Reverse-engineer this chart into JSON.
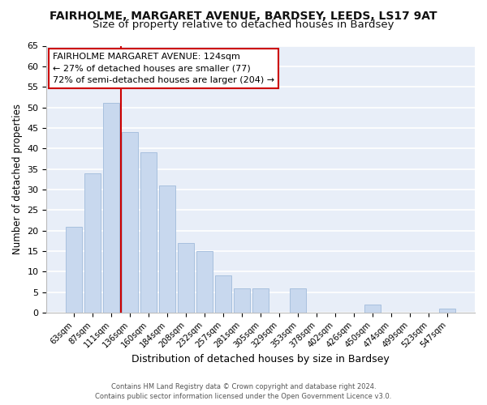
{
  "title": "FAIRHOLME, MARGARET AVENUE, BARDSEY, LEEDS, LS17 9AT",
  "subtitle": "Size of property relative to detached houses in Bardsey",
  "xlabel": "Distribution of detached houses by size in Bardsey",
  "ylabel": "Number of detached properties",
  "bar_labels": [
    "63sqm",
    "87sqm",
    "111sqm",
    "136sqm",
    "160sqm",
    "184sqm",
    "208sqm",
    "232sqm",
    "257sqm",
    "281sqm",
    "305sqm",
    "329sqm",
    "353sqm",
    "378sqm",
    "402sqm",
    "426sqm",
    "450sqm",
    "474sqm",
    "499sqm",
    "523sqm",
    "547sqm"
  ],
  "bar_values": [
    21,
    34,
    51,
    44,
    39,
    31,
    17,
    15,
    9,
    6,
    6,
    0,
    6,
    0,
    0,
    0,
    2,
    0,
    0,
    0,
    1
  ],
  "bar_color": "#c8d8ee",
  "bar_edge_color": "#a8c0de",
  "vline_color": "#cc0000",
  "ylim": [
    0,
    65
  ],
  "yticks": [
    0,
    5,
    10,
    15,
    20,
    25,
    30,
    35,
    40,
    45,
    50,
    55,
    60,
    65
  ],
  "annotation_title": "FAIRHOLME MARGARET AVENUE: 124sqm",
  "annotation_line1": "← 27% of detached houses are smaller (77)",
  "annotation_line2": "72% of semi-detached houses are larger (204) →",
  "annotation_box_color": "#ffffff",
  "annotation_box_edge": "#cc0000",
  "footer_line1": "Contains HM Land Registry data © Crown copyright and database right 2024.",
  "footer_line2": "Contains public sector information licensed under the Open Government Licence v3.0.",
  "plot_bg_color": "#e8eef8",
  "fig_bg_color": "#ffffff",
  "grid_color": "#ffffff",
  "title_fontsize": 10,
  "subtitle_fontsize": 9.5,
  "vline_x_index": 2.5
}
